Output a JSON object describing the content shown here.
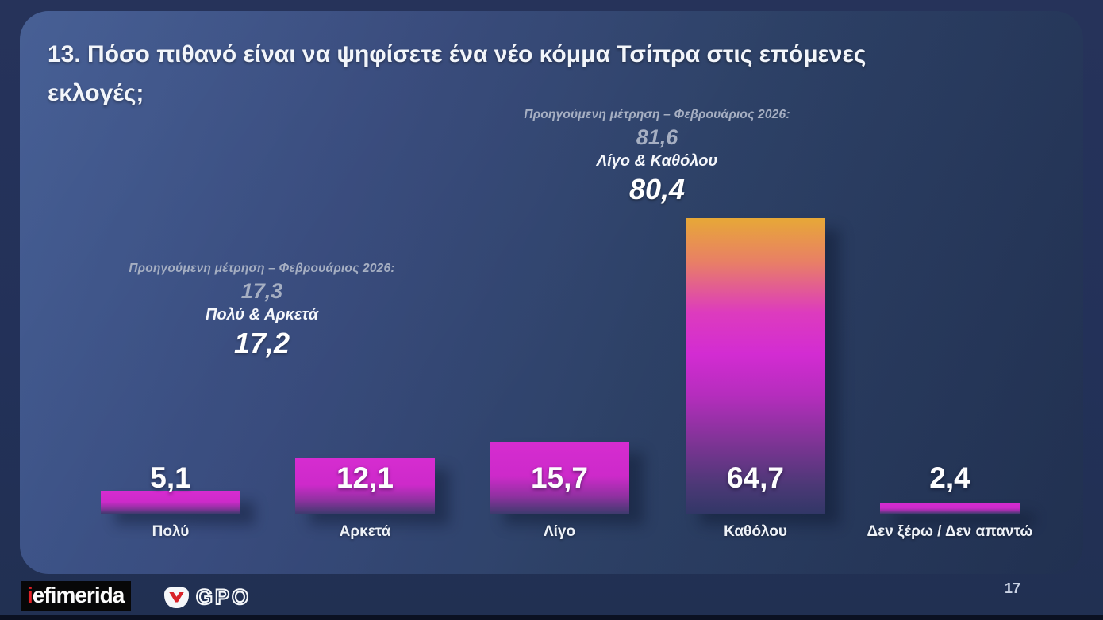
{
  "slide": {
    "title_line1": "13. Πόσο πιθανό είναι να ψηφίσετε ένα νέο κόμμα Τσίπρα στις επόμενες",
    "title_line2": "εκλογές;",
    "page_number": "17"
  },
  "chart_data": {
    "type": "bar",
    "title": "13. Πόσο πιθανό είναι να ψηφίσετε ένα νέο κόμμα Τσίπρα στις επόμενες εκλογές;",
    "categories": [
      "Πολύ",
      "Αρκετά",
      "Λίγο",
      "Καθόλου",
      "Δεν ξέρω / Δεν απαντώ"
    ],
    "values": [
      5.1,
      12.1,
      15.7,
      64.7,
      2.4
    ],
    "value_labels": [
      "5,1",
      "12,1",
      "15,7",
      "64,7",
      "2,4"
    ],
    "bar_styles": [
      "magenta",
      "magenta",
      "magenta",
      "sunset",
      "magenta"
    ],
    "ylim": [
      0,
      66
    ],
    "grid": false,
    "legend": "none",
    "annotations": [
      {
        "position": "above Πολύ & Αρκετά",
        "intro": "Προηγούμενη μέτρηση – Φεβρουάριος 2026:",
        "previous_value": "17,3",
        "group_label": "Πολύ & Αρκετά",
        "current_value": "17,2"
      },
      {
        "position": "above Καθόλου",
        "intro": "Προηγούμενη μέτρηση – Φεβρουάριος 2026:",
        "previous_value": "81,6",
        "group_label": "Λίγο & Καθόλου",
        "current_value": "80,4"
      }
    ],
    "colors": {
      "bar_magenta_top": "#d62cd0",
      "bar_magenta_bottom": "#3f3a6e",
      "bar_sunset_top": "#e7a837",
      "bar_sunset_mid": "#d32cd2",
      "bar_sunset_bottom": "#323767",
      "panel_background": "#2e4268",
      "outer_background": "#233159",
      "text_primary": "#f2f5fa",
      "text_muted": "#a6afc2"
    }
  },
  "footer": {
    "iefimerida_i": "i",
    "iefimerida_rest": "efimerida",
    "gpo": "GPO"
  }
}
